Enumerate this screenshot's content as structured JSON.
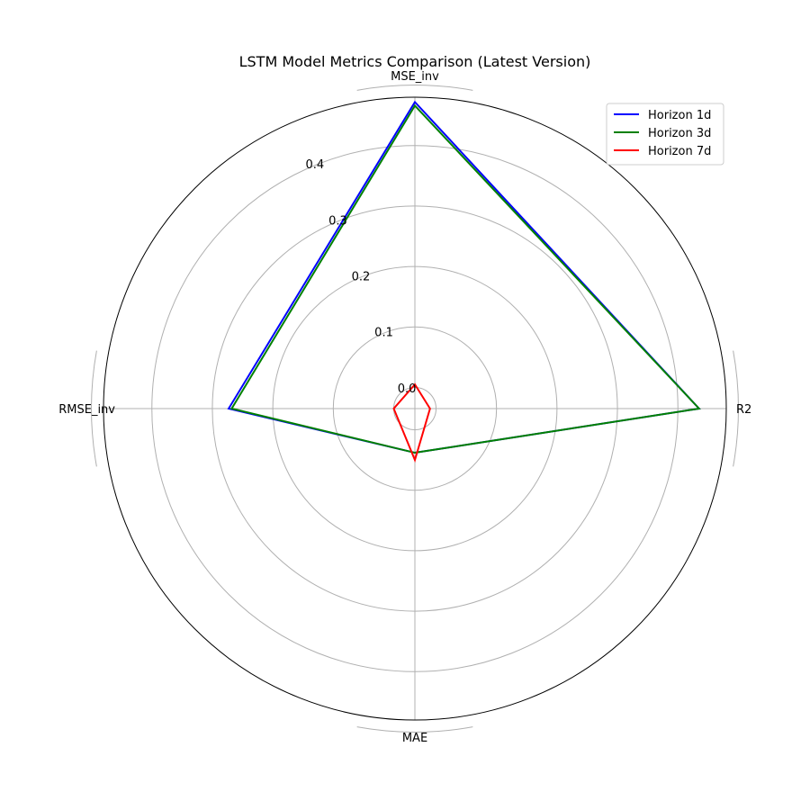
{
  "chart_data": {
    "type": "radar",
    "title": "LSTM Model Metrics Comparison (Latest Version)",
    "axes": [
      "MSE_inv",
      "R2",
      "MAE",
      "RMSE_inv"
    ],
    "rlim": [
      -0.035,
      0.48
    ],
    "rticks": [
      {
        "value": 0.0,
        "label": "0.0"
      },
      {
        "value": 0.1,
        "label": "0.1"
      },
      {
        "value": 0.2,
        "label": "0.2"
      },
      {
        "value": 0.3,
        "label": "0.3"
      },
      {
        "value": 0.4,
        "label": "0.4"
      }
    ],
    "extra_circles": [
      0.0
    ],
    "grid": true,
    "legend_position": "top-right",
    "series": [
      {
        "name": "Horizon 1d",
        "color": "#0000ff",
        "values": [
          0.472,
          0.435,
          0.038,
          0.273
        ]
      },
      {
        "name": "Horizon 3d",
        "color": "#008000",
        "values": [
          0.466,
          0.435,
          0.038,
          0.268
        ]
      },
      {
        "name": "Horizon 7d",
        "color": "#ff0000",
        "values": [
          0.005,
          -0.01,
          0.05,
          -0.0
        ]
      }
    ]
  }
}
